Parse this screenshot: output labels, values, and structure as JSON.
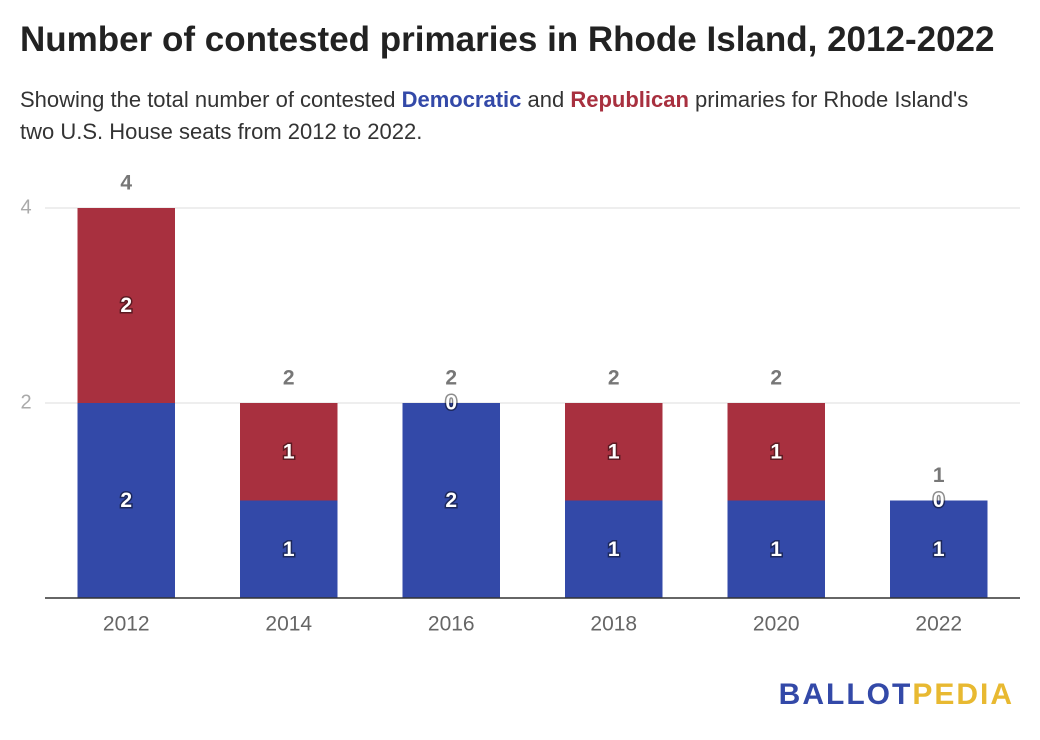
{
  "chart_data": {
    "type": "stacked_bar",
    "title": "Number of contested primaries in Rhode Island, 2012-2022",
    "subtitle": [
      "Showing the total number of contested ",
      " and ",
      " primaries for Rhode Island's two U.S. House seats from 2012 to 2022."
    ],
    "categories": [
      "2012",
      "2014",
      "2016",
      "2018",
      "2020",
      "2022"
    ],
    "series": [
      {
        "name": "Democratic",
        "color": "#3349a8",
        "values": [
          2,
          1,
          2,
          1,
          1,
          1
        ]
      },
      {
        "name": "Republican",
        "color": "#a8303f",
        "values": [
          2,
          1,
          0,
          1,
          1,
          0
        ]
      }
    ],
    "totals": [
      4,
      2,
      2,
      2,
      2,
      1
    ],
    "ylim": [
      0,
      4
    ],
    "yticks": [
      2,
      4
    ],
    "grid": true,
    "logo": [
      "BALLOT",
      "PEDIA"
    ]
  }
}
